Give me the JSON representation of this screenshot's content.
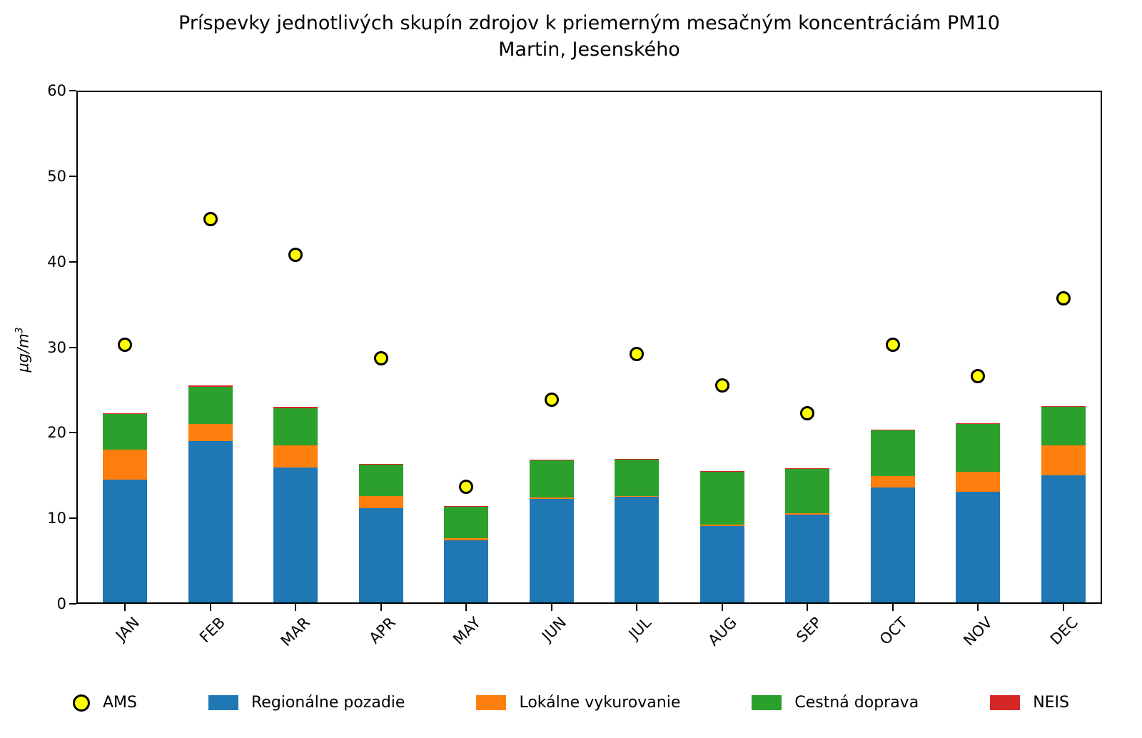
{
  "title": {
    "line1": "Príspevky jednotlivých skupín zdrojov k priemerným mesačným koncentráciám PM10",
    "line2": "Martin, Jesenského"
  },
  "axes": {
    "ylabel_base": "µg/m",
    "ylabel_sup": "3",
    "yticks": [
      0,
      10,
      20,
      30,
      40,
      50,
      60
    ]
  },
  "chart_data": {
    "type": "bar",
    "stacked": true,
    "title": "Príspevky jednotlivých skupín zdrojov k priemerným mesačným koncentráciám PM10",
    "subtitle": "Martin, Jesenského",
    "ylabel": "µg/m³",
    "ylim": [
      0,
      60
    ],
    "yticks": [
      0,
      10,
      20,
      30,
      40,
      50,
      60
    ],
    "grid": false,
    "legend_position": "bottom",
    "categories": [
      "JAN",
      "FEB",
      "MAR",
      "APR",
      "MAY",
      "JUN",
      "JUL",
      "AUG",
      "SEP",
      "OCT",
      "NOV",
      "DEC"
    ],
    "series": [
      {
        "name": "Regionálne pozadie",
        "color": "#1f77b4",
        "values": [
          14.5,
          19.0,
          15.9,
          11.2,
          7.4,
          12.3,
          12.5,
          9.1,
          10.4,
          13.6,
          13.1,
          15.0
        ]
      },
      {
        "name": "Lokálne vykurovanie",
        "color": "#ff7f0e",
        "values": [
          3.5,
          2.0,
          2.6,
          1.4,
          0.3,
          0.15,
          0.1,
          0.15,
          0.2,
          1.3,
          2.3,
          3.5
        ]
      },
      {
        "name": "Cestná doprava",
        "color": "#2ca02c",
        "values": [
          4.2,
          4.4,
          4.4,
          3.7,
          3.7,
          4.4,
          4.3,
          6.2,
          5.2,
          5.4,
          5.6,
          4.5
        ]
      },
      {
        "name": "NEIS",
        "color": "#d62728",
        "values": [
          0.1,
          0.1,
          0.1,
          0.05,
          0.05,
          0.05,
          0.05,
          0.05,
          0.05,
          0.1,
          0.1,
          0.1
        ]
      }
    ],
    "points_series": {
      "name": "AMS",
      "marker": "circle",
      "fill": "#ffff00",
      "edge": "#000000",
      "values": [
        30.3,
        45.0,
        40.8,
        28.7,
        13.7,
        23.9,
        29.2,
        25.5,
        22.3,
        30.3,
        26.6,
        35.7
      ]
    }
  },
  "legend": {
    "items": [
      {
        "label": "AMS",
        "marker": "circle",
        "color": "#ffff00",
        "edge": "#000000"
      },
      {
        "label": "Regionálne pozadie",
        "marker": "rect",
        "color": "#1f77b4"
      },
      {
        "label": "Lokálne vykurovanie",
        "marker": "rect",
        "color": "#ff7f0e"
      },
      {
        "label": "Cestná doprava",
        "marker": "rect",
        "color": "#2ca02c"
      },
      {
        "label": "NEIS",
        "marker": "rect",
        "color": "#d62728"
      }
    ]
  }
}
